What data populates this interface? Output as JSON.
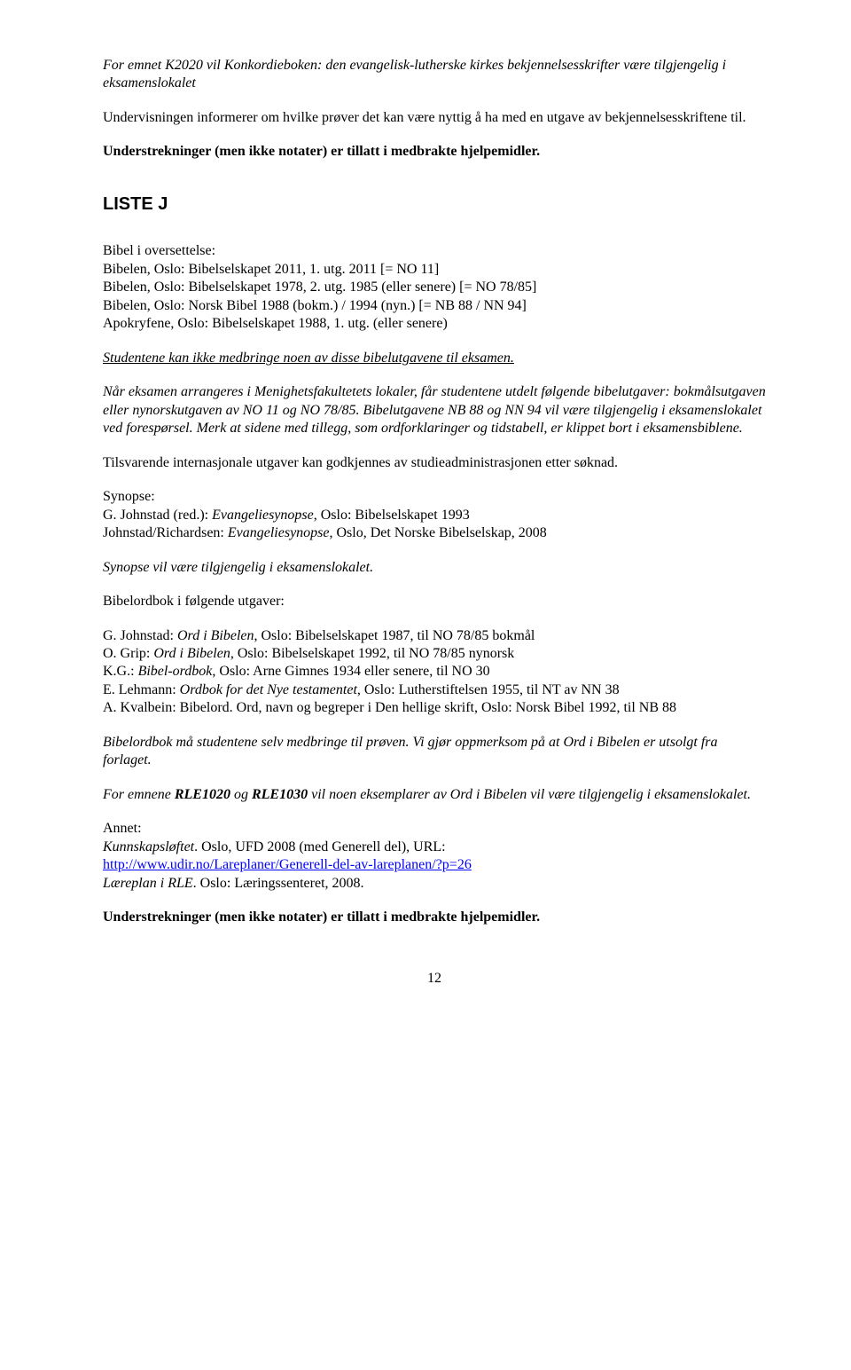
{
  "p1_a": "For emnet K2020 vil Konkordieboken: den evangelisk-lutherske kirkes bekjennelsesskrifter være tilgjengelig i eksamenslokalet",
  "p2": "Undervisningen informerer om hvilke prøver det kan være nyttig å ha med en utgave av bekjennelsesskriftene til.",
  "p3": "Understrekninger (men ikke notater) er tillatt i medbrakte hjelpemidler.",
  "heading": "LISTE J",
  "bibel_heading": "Bibel i oversettelse:",
  "bibel_l1": "Bibelen, Oslo: Bibelselskapet 2011, 1. utg. 2011 [= NO 11]",
  "bibel_l2": "Bibelen, Oslo: Bibelselskapet 1978, 2. utg. 1985 (eller senere) [= NO 78/85]",
  "bibel_l3": "Bibelen, Oslo: Norsk Bibel 1988 (bokm.) / 1994 (nyn.) [= NB 88 / NN 94]",
  "bibel_l4": "Apokryfene, Oslo: Bibelselskapet 1988, 1. utg. (eller senere)",
  "stud_line": "Studentene kan ikke medbringe noen av disse bibelutgavene til eksamen.",
  "nar_text": "Når eksamen arrangeres i Menighetsfakultetets lokaler, får studentene utdelt følgende bibelutgaver: bokmålsutgaven eller nynorskutgaven av NO 11 og NO 78/85. Bibelutgavene NB 88 og NN 94 vil være tilgjengelig i eksamenslokalet ved forespørsel. Merk at sidene med tillegg, som ordforklaringer og tidstabell, er klippet bort i eksamensbiblene.",
  "tilsvarende": "Tilsvarende internasjonale utgaver kan godkjennes av studieadministrasjonen etter søknad.",
  "synopse_label": "Synopse:",
  "syn_1a": "G. Johnstad (red.): ",
  "syn_1b": "Evangeliesynopse",
  "syn_1c": ", Oslo: Bibelselskapet 1993",
  "syn_2a": "Johnstad/Richardsen: ",
  "syn_2b": "Evangeliesynopse",
  "syn_2c": ", Oslo, Det Norske Bibelselskap, 2008",
  "syn_note": "Synopse vil være tilgjengelig i eksamenslokalet.",
  "ordbok_label": "Bibelordbok i følgende utgaver:",
  "ord_1a": "G. Johnstad: ",
  "ord_1b": "Ord i Bibelen",
  "ord_1c": ", Oslo: Bibelselskapet 1987, til NO 78/85 bokmål",
  "ord_2a": "O. Grip: ",
  "ord_2b": "Ord i Bibelen",
  "ord_2c": ", Oslo: Bibelselskapet 1992, til NO 78/85 nynorsk",
  "ord_3a": "K.G.: ",
  "ord_3b": "Bibel-ordbok",
  "ord_3c": ", Oslo: Arne Gimnes 1934 eller senere, til NO 30",
  "ord_4a": "E. Lehmann: ",
  "ord_4b": "Ordbok for det Nye testamentet",
  "ord_4c": ", Oslo: Lutherstiftelsen 1955, til NT av NN 38",
  "ord_5": "A. Kvalbein: Bibelord. Ord, navn og begreper i Den hellige skrift, Oslo: Norsk Bibel 1992, til NB 88",
  "ordbok_note": "Bibelordbok må studentene selv medbringe til prøven. Vi gjør oppmerksom på at Ord i Bibelen er utsolgt fra forlaget.",
  "rle_a": "For emnene ",
  "rle_b": "RLE1020",
  "rle_c": " og ",
  "rle_d": "RLE1030",
  "rle_e": " vil noen eksemplarer av Ord i Bibelen vil være tilgjengelig i eksamenslokalet.",
  "annet_label": "Annet:",
  "annet_1a": "Kunnskapsløftet",
  "annet_1b": ". Oslo, UFD 2008 (med Generell del), URL:",
  "annet_url": "http://www.udir.no/Lareplaner/Generell-del-av-lareplanen/?p=26",
  "annet_2a": "Læreplan i RLE",
  "annet_2b": ". Oslo: Læringssenteret, 2008.",
  "final": "Understrekninger (men ikke notater) er tillatt i medbrakte hjelpemidler.",
  "page": "12"
}
